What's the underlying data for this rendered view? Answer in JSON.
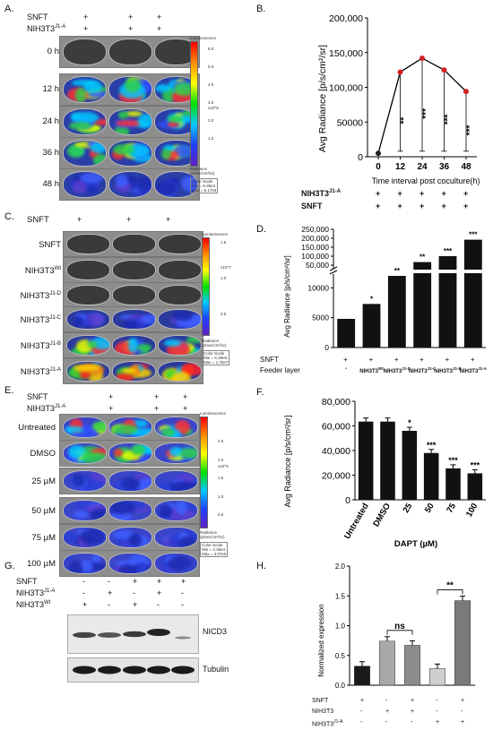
{
  "panelA": {
    "label": "A.",
    "row_headers": [
      "SNFT",
      "NIH3T3",
      "J1-A"
    ],
    "plus": "+",
    "times": [
      "0 h",
      "12 h",
      "24 h",
      "36 h",
      "48 h"
    ],
    "colorbar_title": "Luminescence",
    "ticks": [
      "6.0",
      "5.0",
      "4.0",
      "3.0",
      "2.0",
      "1.0"
    ],
    "exponent": "x10^5",
    "radiance_caption": "Radiance\n(p/sec/cm²/sr)",
    "color_scale_caption": "Color Scale\nMin = 5.35e4\nMax = 6.17e5"
  },
  "panelB": {
    "label": "B.",
    "chart_data": {
      "type": "line",
      "x": [
        0,
        12,
        24,
        36,
        48
      ],
      "values": [
        5000,
        122000,
        142000,
        125000,
        94000
      ],
      "ylabel": "Avg Radiance [p/s/cm²/sr]",
      "xlabel": "Time interval post coculture(h)",
      "ylim": [
        0,
        200000
      ],
      "yticks": [
        "0",
        "50000",
        "100,000",
        "150,000",
        "200,000"
      ],
      "xticks": [
        "0",
        "12",
        "24",
        "36",
        "48"
      ],
      "significance": [
        "",
        "**",
        "***",
        "***",
        "***"
      ]
    },
    "rows": [
      "NIH3T3",
      "J1-A",
      "SNFT"
    ],
    "plus": "+"
  },
  "panelC": {
    "label": "C.",
    "rows": [
      "SNFT",
      "SNFT",
      "NIH3T3",
      "Wt",
      "NIH3T3",
      "J1-D",
      "NIH3T3",
      "J1-C",
      "NIH3T3",
      "J1-B",
      "NIH3T3",
      "J1-A"
    ],
    "plus": "+",
    "colorbar_title": "Luminescence",
    "ticks": [
      "1.5",
      "1.0",
      "0.5"
    ],
    "exponent": "x10^7",
    "radiance_caption": "Radiance\n(p/sec/cm²/sr)",
    "color_scale_caption": "Color Scale\nMin = 5.39e6\nMax = 1.75e7"
  },
  "panelD": {
    "label": "D.",
    "chart_data": {
      "type": "bar",
      "categories": [
        "-",
        "NIH3T3Wt",
        "NIH3T3J1-D",
        "NIH3T3J1-C",
        "NIH3T3J1-B",
        "NIH3T3J1-A"
      ],
      "values": [
        4800,
        7300,
        12000,
        67000,
        100000,
        192000
      ],
      "ylabel": "Avg Radiance [p/s/cm²/sr]",
      "yticks_low": [
        "0",
        "5000",
        "10000"
      ],
      "yticks_high": [
        "50,000",
        "100,000",
        "150,000",
        "200,000",
        "250,000"
      ],
      "significance": [
        "",
        "*",
        "**",
        "**",
        "***",
        "***"
      ],
      "axis_break": true
    },
    "rows": [
      "SNFT",
      "Feeder layer"
    ],
    "plus": "+",
    "feeder": [
      "-",
      "NIH3T3",
      "Wt",
      "NIH3T3",
      "J1-D",
      "NIH3T3",
      "J1-C",
      "NIH3T3",
      "J1-B",
      "NIH3T3",
      "J1-A"
    ]
  },
  "panelE": {
    "label": "E.",
    "row_headers": [
      "SNFT",
      "NIH3T3",
      "J1-A"
    ],
    "plus": "+",
    "doses": [
      "Untreated",
      "DMSO",
      "25 µM",
      "50 µM",
      "75 µM",
      "100 µM"
    ],
    "colorbar_title": "Luminescence",
    "ticks": [
      "2.5",
      "2.0",
      "1.5",
      "1.0",
      "0.5"
    ],
    "exponent": "x10^5",
    "radiance_caption": "Radiance\n(p/sec/cm²/sr)",
    "color_scale_caption": "Color Scale\nMin = 2.36e4\nMax = 3.07e5"
  },
  "panelF": {
    "label": "F.",
    "chart_data": {
      "type": "bar",
      "categories": [
        "Untreated",
        "DMSO",
        "25",
        "50",
        "75",
        "100"
      ],
      "values": [
        63500,
        63500,
        56000,
        38000,
        25500,
        21500
      ],
      "ylabel": "Avg Radiance [p/s/cm²/sr]",
      "xlabel": "DAPT (µM)",
      "ylim": [
        0,
        80000
      ],
      "yticks": [
        "0",
        "20,000",
        "40,000",
        "60,000",
        "80,000"
      ],
      "significance": [
        "",
        "",
        "*",
        "***",
        "***",
        "***"
      ]
    }
  },
  "panelG": {
    "label": "G.",
    "rows": [
      {
        "name": "SNFT",
        "sign": [
          "-",
          "-",
          "+",
          "+",
          "+"
        ]
      },
      {
        "name": "NIH3T3",
        "sup": "J1-A",
        "sign": [
          "-",
          "+",
          "-",
          "+",
          "-"
        ]
      },
      {
        "name": "NIH3T3",
        "sup": "Wt",
        "sign": [
          "+",
          "-",
          "+",
          "-",
          "-"
        ]
      }
    ],
    "blots": [
      "NICD3",
      "Tubulin"
    ]
  },
  "panelH": {
    "label": "H.",
    "chart_data": {
      "type": "bar",
      "categories": [
        "1",
        "2",
        "3",
        "4",
        "5"
      ],
      "values": [
        0.32,
        0.74,
        0.67,
        0.28,
        1.42
      ],
      "ylabel": "Normalized expression",
      "ylim": [
        0,
        2.0
      ],
      "yticks": [
        "0.0",
        "0.5",
        "1.0",
        "1.5",
        "2.0"
      ],
      "significance": [
        {
          "from": 1,
          "to": 2,
          "label": "ns"
        },
        {
          "from": 3,
          "to": 4,
          "label": "**"
        }
      ],
      "colors": [
        "#1a1a1a",
        "#a8a8a8",
        "#8c8c8c",
        "#cfcfcf",
        "#7a7a7a"
      ]
    },
    "rows": [
      {
        "name": "SNFT",
        "sign": [
          "+",
          "-",
          "+",
          "-",
          "+"
        ]
      },
      {
        "name": "NIH3T3",
        "sign": [
          "-",
          "+",
          "+",
          "-",
          "-"
        ]
      },
      {
        "name": "NIH3T3",
        "sup": "J1-A",
        "sign": [
          "-",
          "-",
          "-",
          "+",
          "+"
        ]
      }
    ]
  }
}
